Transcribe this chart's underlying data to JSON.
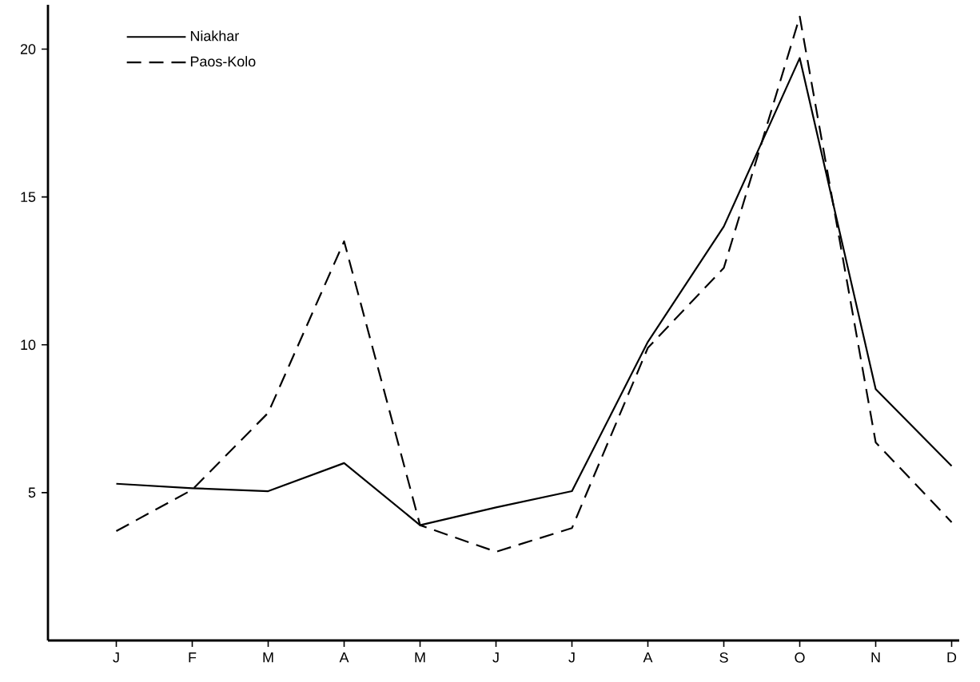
{
  "chart_data": {
    "type": "line",
    "categories": [
      "J",
      "F",
      "M",
      "A",
      "M",
      "J",
      "J",
      "A",
      "S",
      "O",
      "N",
      "D"
    ],
    "series": [
      {
        "name": "Niakhar",
        "color": "#000000",
        "line_style": "solid",
        "values": [
          5.3,
          5.15,
          5.05,
          6.0,
          3.9,
          4.5,
          5.05,
          10.1,
          14.0,
          19.7,
          8.5,
          5.9
        ]
      },
      {
        "name": "Paos-Kolo",
        "color": "#000000",
        "line_style": "dashed",
        "values": [
          3.7,
          5.1,
          7.7,
          13.5,
          3.9,
          3.0,
          3.8,
          9.9,
          12.6,
          21.1,
          6.7,
          4.0
        ]
      }
    ],
    "ylim": [
      0,
      21.5
    ],
    "yticks": [
      5,
      10,
      15,
      20
    ],
    "grid": false,
    "legend": "top left",
    "marker": "none"
  }
}
